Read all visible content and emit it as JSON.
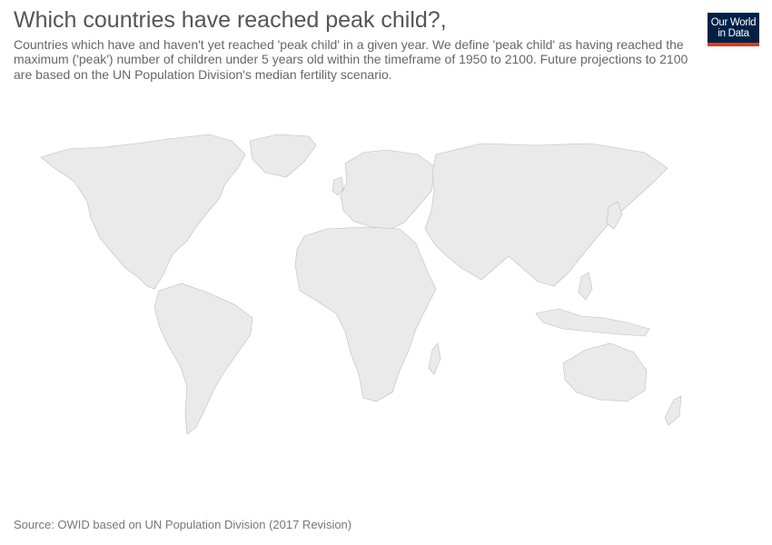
{
  "header": {
    "title": "Which countries have reached peak child?,",
    "subtitle": "Countries which have and haven't yet reached 'peak child' in a given year. We define 'peak child' as having reached the maximum ('peak') number of children under 5 years old within the timeframe of 1950 to 2100. Future projections to 2100 are based on the UN Population Division's median fertility scenario."
  },
  "logo": {
    "line1": "Our World",
    "line2": "in Data"
  },
  "colors": {
    "land": "#eaeaea",
    "border": "#bdbdbd",
    "logo_bg": "#002147",
    "logo_accent": "#e63912"
  },
  "footer": {
    "source": "Source: OWID based on UN Population Division (2017 Revision)"
  }
}
